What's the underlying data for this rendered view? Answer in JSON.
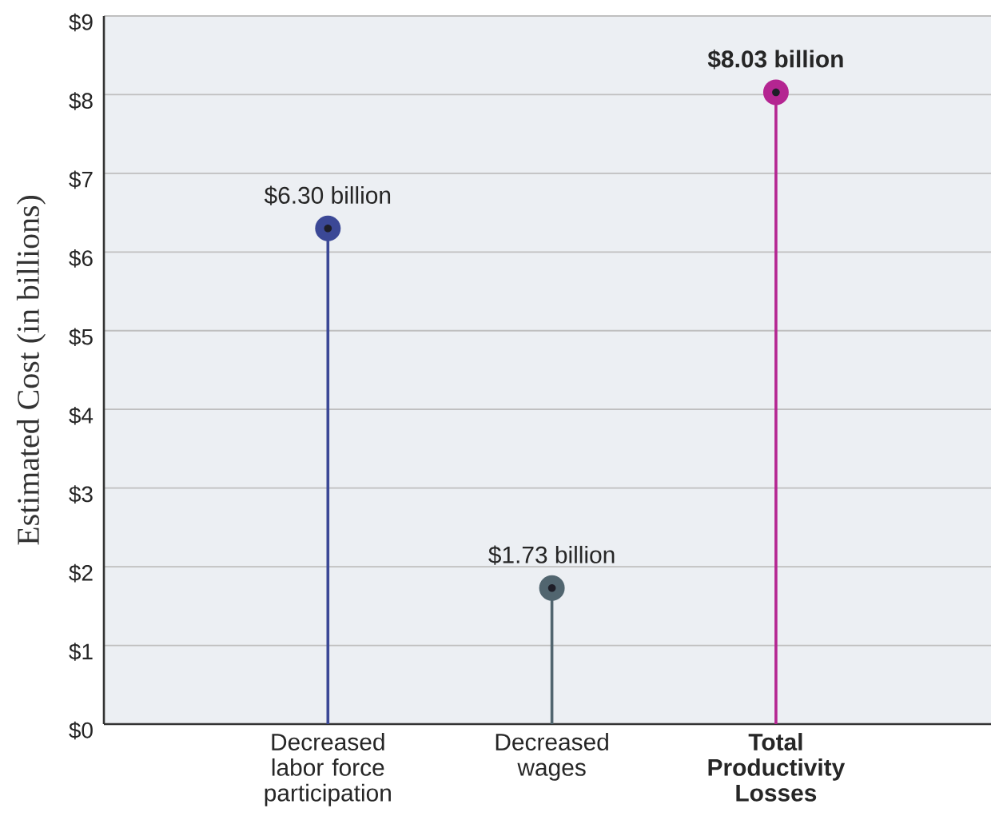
{
  "chart_data": {
    "type": "lollipop",
    "ylabel": "Estimated Cost (in billions)",
    "categories": [
      "Decreased labor force participation",
      "Decreased wages",
      "**Total Productivity Losses**"
    ],
    "values": [
      6.3,
      1.73,
      8.03
    ],
    "colors": [
      "#3b4896",
      "#51656f",
      "#b42591"
    ],
    "value_labels": [
      "$6.30 billion",
      "$1.73 billion",
      "**$8.03 billion**"
    ],
    "ylim": [
      0,
      9
    ],
    "yticks": [
      {
        "value": 0,
        "label": "$0"
      },
      {
        "value": 1,
        "label": "$1"
      },
      {
        "value": 2,
        "label": "$2"
      },
      {
        "value": 3,
        "label": "$3"
      },
      {
        "value": 4,
        "label": "$4"
      },
      {
        "value": 5,
        "label": "$5"
      },
      {
        "value": 6,
        "label": "$6"
      },
      {
        "value": 7,
        "label": "$7"
      },
      {
        "value": 8,
        "label": "$8"
      },
      {
        "value": 9,
        "label": "$9"
      }
    ],
    "grid": "y",
    "marker": "circle"
  }
}
